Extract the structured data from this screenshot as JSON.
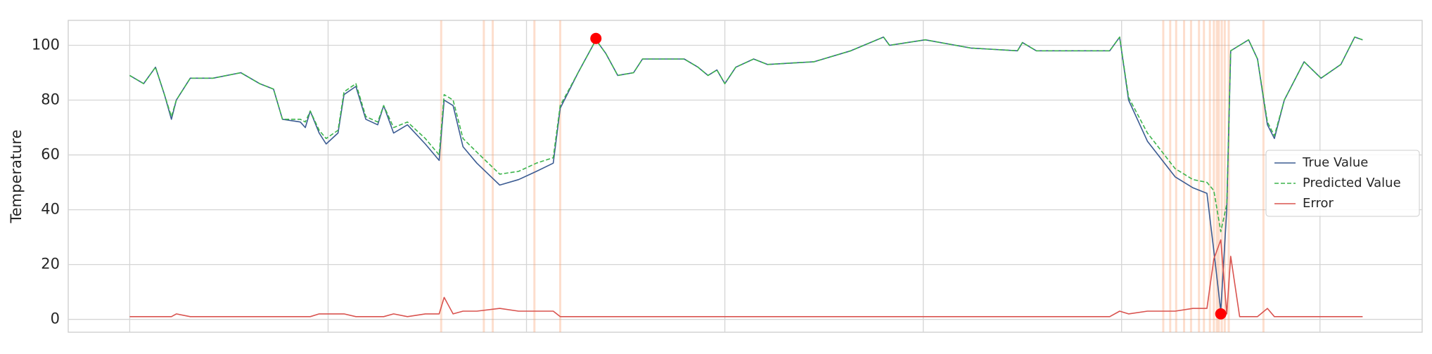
{
  "chart_data": {
    "type": "line",
    "y_label": "Temperature",
    "x": [
      0,
      14,
      26,
      35,
      42,
      47,
      61,
      84,
      112,
      131,
      145,
      154,
      172,
      177,
      182,
      191,
      198,
      210,
      216,
      228,
      238,
      250,
      256,
      266,
      280,
      298,
      312,
      317,
      326,
      336,
      350,
      373,
      392,
      410,
      427,
      434,
      452,
      470,
      480,
      492,
      508,
      517,
      559,
      573,
      583,
      592,
      600,
      611,
      629,
      643,
      690,
      727,
      760,
      766,
      802,
      848,
      895,
      900,
      914,
      988,
      998,
      1007,
      1026,
      1054,
      1072,
      1086,
      1093,
      1100,
      1106,
      1110,
      1119,
      1128,
      1137,
      1147,
      1154,
      1164,
      1184,
      1201,
      1221,
      1235,
      1243
    ],
    "series": [
      {
        "name": "True Value",
        "color": "#3b5b92",
        "dash": false,
        "values": [
          89,
          86,
          92,
          82,
          73,
          80,
          88,
          88,
          90,
          86,
          84,
          73,
          72,
          70,
          76,
          68,
          64,
          68,
          82,
          85,
          73,
          71,
          78,
          68,
          71,
          64,
          58,
          80,
          78,
          63,
          57,
          49,
          51,
          54,
          57,
          77,
          90,
          102,
          97,
          89,
          90,
          95,
          95,
          92,
          89,
          91,
          86,
          92,
          95,
          93,
          94,
          98,
          103,
          100,
          102,
          99,
          98,
          101,
          98,
          98,
          103,
          80,
          65,
          52,
          48,
          46,
          25,
          3,
          40,
          98,
          100,
          102,
          95,
          71,
          66,
          80,
          94,
          88,
          93,
          103,
          102
        ]
      },
      {
        "name": "Predicted Value",
        "color": "#3cb44b",
        "dash": true,
        "values": [
          89,
          86,
          92,
          82,
          74,
          80,
          88,
          88,
          90,
          86,
          84,
          73,
          73,
          72,
          76,
          69,
          66,
          69,
          83,
          86,
          74,
          72,
          78,
          70,
          72,
          66,
          60,
          82,
          80,
          66,
          61,
          53,
          54,
          57,
          59,
          78,
          90,
          102,
          97,
          89,
          90,
          95,
          95,
          92,
          89,
          91,
          86,
          92,
          95,
          93,
          94,
          98,
          103,
          100,
          102,
          99,
          98,
          101,
          98,
          98,
          103,
          81,
          68,
          55,
          51,
          50,
          47,
          32,
          42,
          98,
          100,
          102,
          95,
          72,
          67,
          80,
          94,
          88,
          93,
          103,
          102
        ]
      },
      {
        "name": "Error",
        "color": "#d9534f",
        "dash": false,
        "values": [
          1,
          1,
          1,
          1,
          1,
          2,
          1,
          1,
          1,
          1,
          1,
          1,
          1,
          1,
          1,
          2,
          2,
          2,
          2,
          1,
          1,
          1,
          1,
          2,
          1,
          2,
          2,
          8,
          2,
          3,
          3,
          4,
          3,
          3,
          3,
          1,
          1,
          1,
          1,
          1,
          1,
          1,
          1,
          1,
          1,
          1,
          1,
          1,
          1,
          1,
          1,
          1,
          1,
          1,
          1,
          1,
          1,
          1,
          1,
          1,
          3,
          2,
          3,
          3,
          4,
          4,
          22,
          29,
          2,
          23,
          1,
          1,
          1,
          4,
          1,
          1,
          1,
          1,
          1,
          1,
          1
        ]
      }
    ],
    "anomalies": [
      314,
      357,
      366,
      408,
      434,
      1042,
      1049,
      1055,
      1063,
      1070,
      1078,
      1083,
      1089,
      1093,
      1096,
      1098,
      1101,
      1104,
      1108,
      1143
    ],
    "anomaly_color": "#f8a070",
    "markers": [
      {
        "x": 470,
        "y": 102.5
      },
      {
        "x": 1100,
        "y": 2
      }
    ],
    "marker_color": "#ff0000",
    "xlim": [
      -62,
      1303
    ],
    "xticks": [
      0,
      200,
      400,
      600,
      800,
      1000,
      1200
    ],
    "ylim": [
      -4.7,
      109.1
    ],
    "yticks": [
      0,
      20,
      40,
      60,
      80,
      100
    ],
    "grid": true,
    "legend": "center right"
  }
}
